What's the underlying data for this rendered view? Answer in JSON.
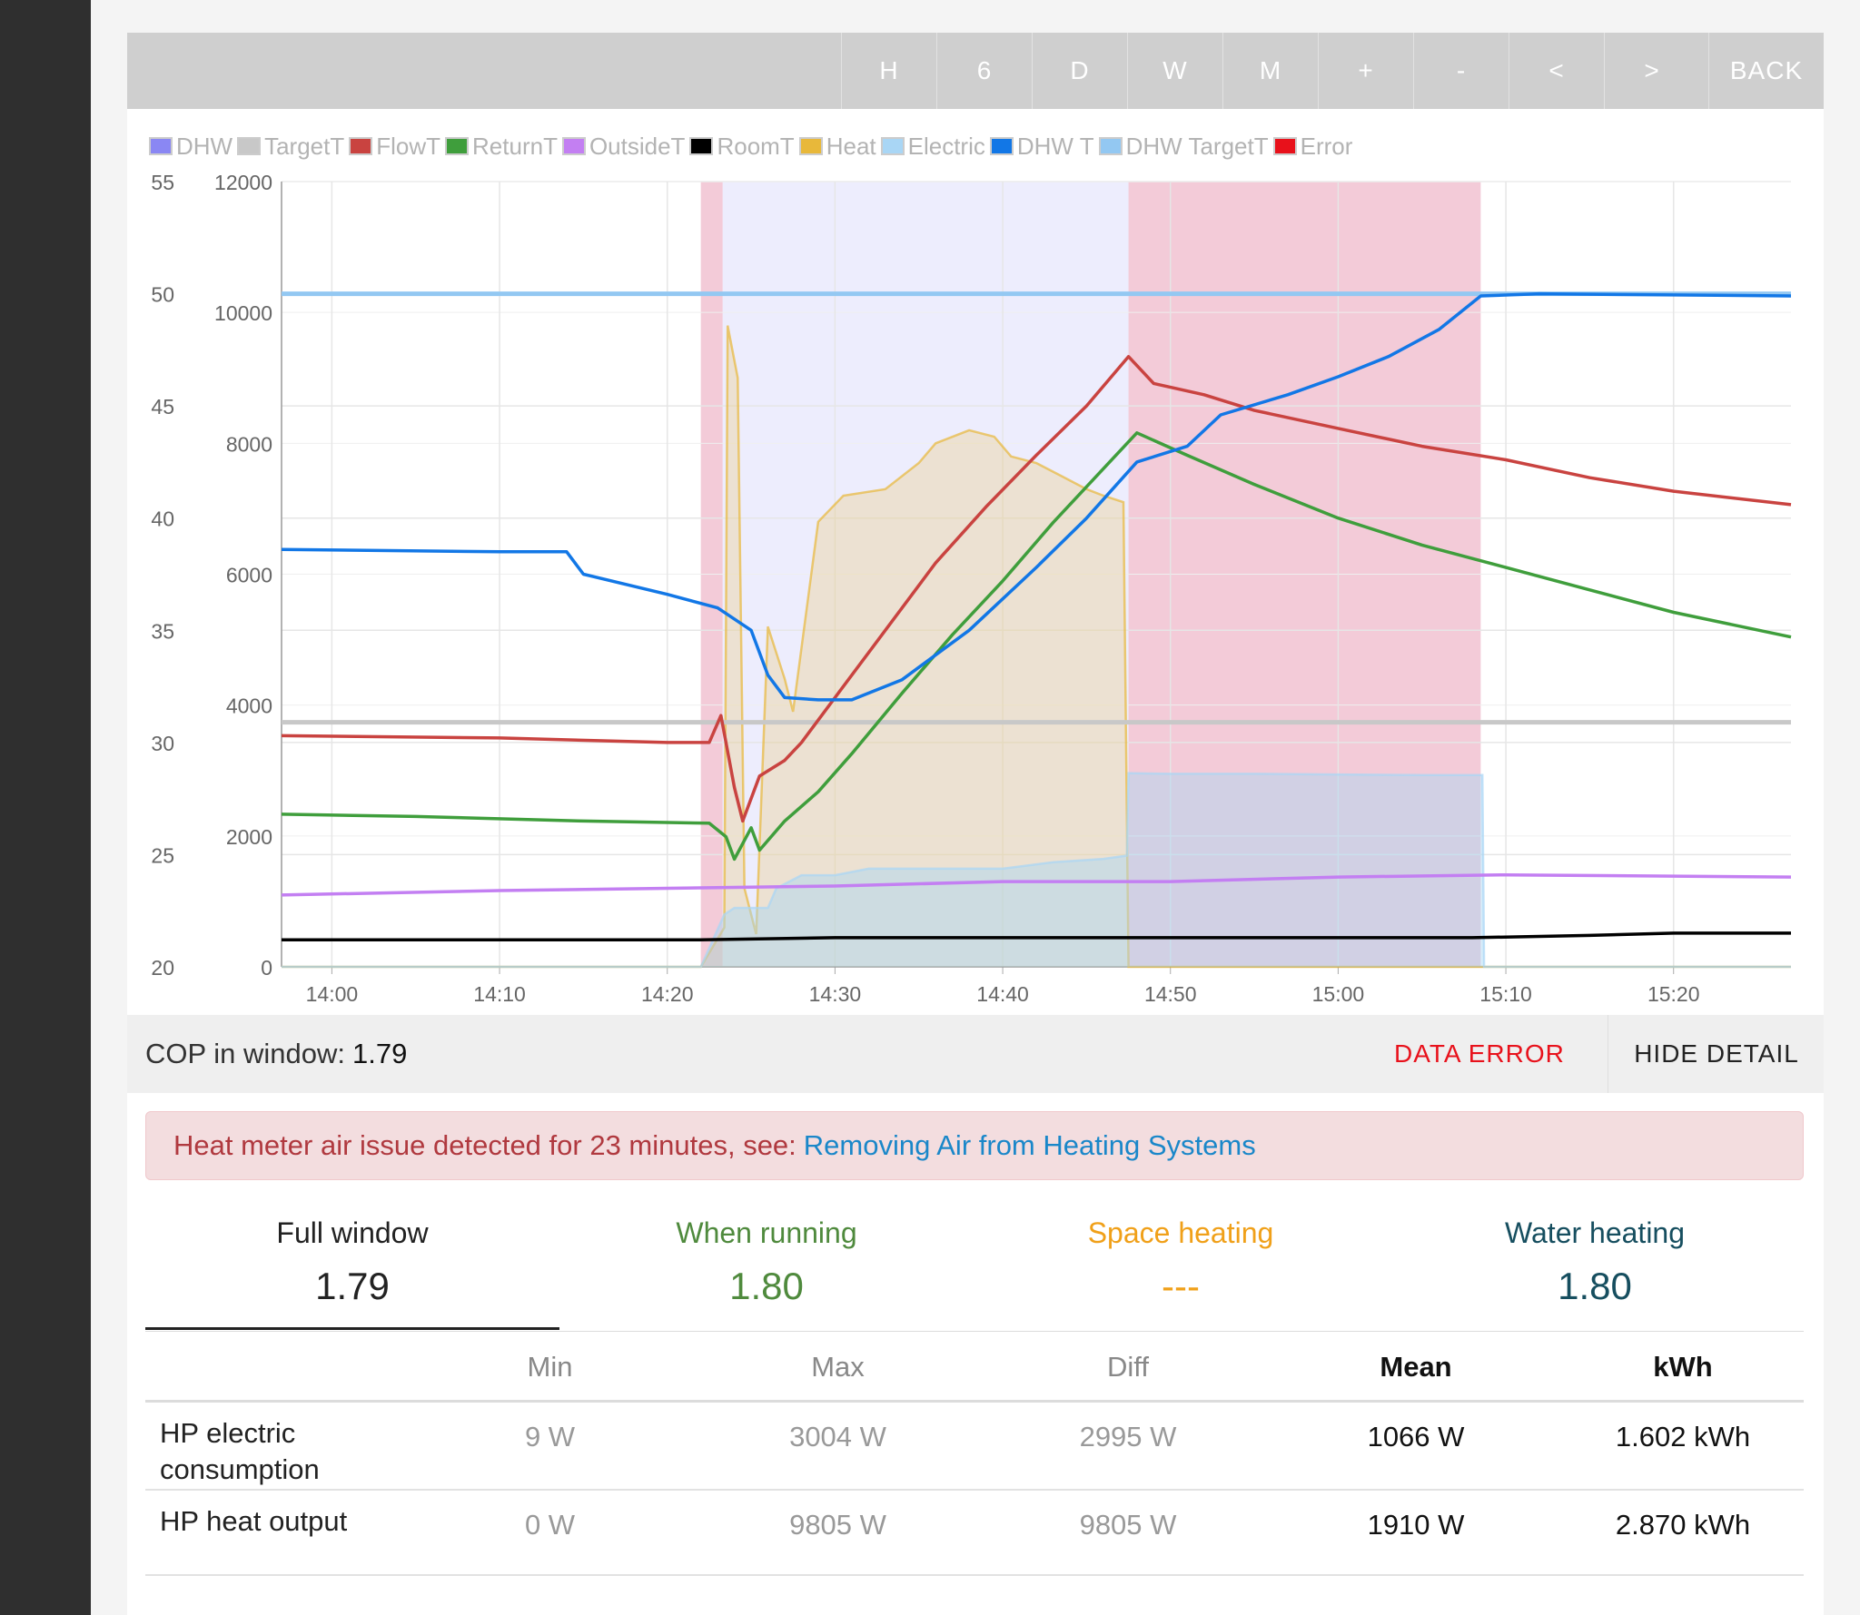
{
  "toolbar": {
    "buttons": [
      "H",
      "6",
      "D",
      "W",
      "M",
      "+",
      "-",
      "<",
      ">",
      "BACK"
    ]
  },
  "legend": [
    {
      "label": "DHW",
      "color": "#8a87f3"
    },
    {
      "label": "TargetT",
      "color": "#c8c8c8"
    },
    {
      "label": "FlowT",
      "color": "#c94340"
    },
    {
      "label": "ReturnT",
      "color": "#3f9e3c"
    },
    {
      "label": "OutsideT",
      "color": "#c37ff2"
    },
    {
      "label": "RoomT",
      "color": "#000000"
    },
    {
      "label": "Heat",
      "color": "#e8b83a"
    },
    {
      "label": "Electric",
      "color": "#a9d6f5"
    },
    {
      "label": "DHW T",
      "color": "#1277e6"
    },
    {
      "label": "DHW TargetT",
      "color": "#93c8f2"
    },
    {
      "label": "Error",
      "color": "#e8111b"
    }
  ],
  "chart_data": {
    "type": "line",
    "x_ticks": [
      "14:00",
      "14:10",
      "14:20",
      "14:30",
      "14:40",
      "14:50",
      "15:00",
      "15:10",
      "15:20"
    ],
    "x_range_minutes": [
      -3,
      87
    ],
    "y_left_ticks": [
      "55",
      "50",
      "45",
      "40",
      "35",
      "30",
      "25",
      "20"
    ],
    "y_left_range": [
      20,
      55
    ],
    "y_right_ticks": [
      "12000",
      "10000",
      "8000",
      "6000",
      "4000",
      "2000",
      "0"
    ],
    "y_right_range": [
      0,
      12000
    ],
    "grid": true,
    "legend_position": "top",
    "shaded_regions": [
      {
        "name": "Error",
        "start": 22.0,
        "end": 23.3
      },
      {
        "name": "DHW",
        "start": 23.3,
        "end": 47.5
      },
      {
        "name": "Error",
        "start": 47.5,
        "end": 68.5
      }
    ],
    "series": [
      {
        "name": "TargetT",
        "axis": "left",
        "color": "#c8c8c8",
        "points": [
          [
            -3,
            30.9
          ],
          [
            87,
            30.9
          ]
        ]
      },
      {
        "name": "DHW TargetT",
        "axis": "left",
        "color": "#93c8f2",
        "points": [
          [
            -3,
            50.0
          ],
          [
            87,
            50.0
          ]
        ]
      },
      {
        "name": "FlowT",
        "axis": "left",
        "color": "#c94340",
        "points": [
          [
            -3,
            30.3
          ],
          [
            10,
            30.2
          ],
          [
            20,
            30.0
          ],
          [
            22.5,
            30.0
          ],
          [
            23.2,
            31.2
          ],
          [
            24,
            28.0
          ],
          [
            24.5,
            26.5
          ],
          [
            25.5,
            28.5
          ],
          [
            27,
            29.2
          ],
          [
            28,
            30.0
          ],
          [
            30,
            32.0
          ],
          [
            33,
            35.0
          ],
          [
            36,
            38.0
          ],
          [
            39,
            40.5
          ],
          [
            42,
            42.8
          ],
          [
            45,
            45.0
          ],
          [
            47.5,
            47.2
          ],
          [
            49,
            46.0
          ],
          [
            52,
            45.5
          ],
          [
            55,
            44.8
          ],
          [
            60,
            44.0
          ],
          [
            65,
            43.2
          ],
          [
            70,
            42.6
          ],
          [
            75,
            41.8
          ],
          [
            80,
            41.2
          ],
          [
            87,
            40.6
          ]
        ]
      },
      {
        "name": "ReturnT",
        "axis": "left",
        "color": "#3f9e3c",
        "points": [
          [
            -3,
            26.8
          ],
          [
            5,
            26.7
          ],
          [
            15,
            26.5
          ],
          [
            22.5,
            26.4
          ],
          [
            23.5,
            25.8
          ],
          [
            24,
            24.8
          ],
          [
            25,
            26.2
          ],
          [
            25.5,
            25.2
          ],
          [
            27,
            26.5
          ],
          [
            29,
            27.8
          ],
          [
            31,
            29.5
          ],
          [
            34,
            32.2
          ],
          [
            37,
            34.8
          ],
          [
            40,
            37.2
          ],
          [
            43,
            39.8
          ],
          [
            46,
            42.2
          ],
          [
            48,
            43.8
          ],
          [
            51,
            42.8
          ],
          [
            55,
            41.5
          ],
          [
            60,
            40.0
          ],
          [
            65,
            38.8
          ],
          [
            70,
            37.8
          ],
          [
            75,
            36.8
          ],
          [
            80,
            35.8
          ],
          [
            87,
            34.7
          ]
        ]
      },
      {
        "name": "DHW T",
        "axis": "left",
        "color": "#1277e6",
        "points": [
          [
            -3,
            38.6
          ],
          [
            10,
            38.5
          ],
          [
            14,
            38.5
          ],
          [
            15,
            37.5
          ],
          [
            20,
            36.6
          ],
          [
            23,
            36.0
          ],
          [
            25,
            35.0
          ],
          [
            26,
            33.0
          ],
          [
            27,
            32.0
          ],
          [
            29,
            31.9
          ],
          [
            31,
            31.9
          ],
          [
            34,
            32.8
          ],
          [
            38,
            35.0
          ],
          [
            42,
            37.8
          ],
          [
            45,
            40.0
          ],
          [
            48,
            42.5
          ],
          [
            51,
            43.2
          ],
          [
            53,
            44.6
          ],
          [
            57,
            45.5
          ],
          [
            60,
            46.3
          ],
          [
            63,
            47.2
          ],
          [
            66,
            48.4
          ],
          [
            68.5,
            49.9
          ],
          [
            72,
            50.0
          ],
          [
            87,
            49.9
          ]
        ]
      },
      {
        "name": "OutsideT",
        "axis": "left",
        "color": "#c37ff2",
        "points": [
          [
            -3,
            23.2
          ],
          [
            10,
            23.4
          ],
          [
            20,
            23.5
          ],
          [
            30,
            23.6
          ],
          [
            40,
            23.8
          ],
          [
            50,
            23.8
          ],
          [
            60,
            24.0
          ],
          [
            70,
            24.1
          ],
          [
            87,
            24.0
          ]
        ]
      },
      {
        "name": "RoomT",
        "axis": "left",
        "color": "#000000",
        "points": [
          [
            -3,
            21.2
          ],
          [
            22,
            21.2
          ],
          [
            30,
            21.3
          ],
          [
            68,
            21.3
          ],
          [
            75,
            21.4
          ],
          [
            80,
            21.5
          ],
          [
            87,
            21.5
          ]
        ]
      },
      {
        "name": "Heat",
        "axis": "right",
        "color": "#e8b83a",
        "fill": true,
        "points": [
          [
            -3,
            0
          ],
          [
            22,
            0
          ],
          [
            23.4,
            600
          ],
          [
            23.6,
            9800
          ],
          [
            24.2,
            9000
          ],
          [
            24.6,
            1200
          ],
          [
            25.3,
            500
          ],
          [
            26,
            5200
          ],
          [
            27,
            4400
          ],
          [
            27.5,
            3900
          ],
          [
            29,
            6800
          ],
          [
            30.5,
            7200
          ],
          [
            33,
            7300
          ],
          [
            35,
            7700
          ],
          [
            36,
            8000
          ],
          [
            38,
            8200
          ],
          [
            39.5,
            8100
          ],
          [
            40.5,
            7800
          ],
          [
            42,
            7700
          ],
          [
            43.5,
            7500
          ],
          [
            45,
            7300
          ],
          [
            46,
            7200
          ],
          [
            47.2,
            7100
          ],
          [
            47.5,
            0
          ],
          [
            87,
            0
          ]
        ]
      },
      {
        "name": "Electric",
        "axis": "right",
        "color": "#a9d6f5",
        "fill": true,
        "points": [
          [
            -3,
            0
          ],
          [
            22,
            0
          ],
          [
            23.4,
            800
          ],
          [
            24,
            900
          ],
          [
            26,
            900
          ],
          [
            26.5,
            1200
          ],
          [
            28,
            1400
          ],
          [
            30,
            1400
          ],
          [
            32,
            1500
          ],
          [
            36,
            1500
          ],
          [
            40,
            1500
          ],
          [
            43,
            1600
          ],
          [
            46,
            1650
          ],
          [
            47.4,
            1700
          ],
          [
            47.5,
            2960
          ],
          [
            50,
            2950
          ],
          [
            55,
            2950
          ],
          [
            60,
            2940
          ],
          [
            65,
            2930
          ],
          [
            68.6,
            2930
          ],
          [
            68.7,
            0
          ],
          [
            87,
            0
          ]
        ]
      }
    ]
  },
  "cop_bar": {
    "label": "COP in window:",
    "value": "1.79",
    "data_error": "DATA ERROR",
    "hide_detail": "HIDE DETAIL"
  },
  "alert": {
    "text": "Heat meter air issue detected for 23 minutes, see:",
    "link": "Removing Air from Heating Systems"
  },
  "cop_tabs": [
    {
      "label": "Full window",
      "value": "1.79",
      "color": "#222222"
    },
    {
      "label": "When running",
      "value": "1.80",
      "color": "#4f8a3d"
    },
    {
      "label": "Space heating",
      "value": "---",
      "color": "#f0a019"
    },
    {
      "label": "Water heating",
      "value": "1.80",
      "color": "#164e5f"
    }
  ],
  "stats_table": {
    "headers": [
      "",
      "Min",
      "Max",
      "Diff",
      "Mean",
      "kWh"
    ],
    "rows": [
      {
        "label": "HP electric consumption",
        "values": [
          "9 W",
          "3004 W",
          "2995 W",
          "1066 W",
          "1.602 kWh"
        ]
      },
      {
        "label": "HP heat output",
        "values": [
          "0 W",
          "9805 W",
          "9805 W",
          "1910 W",
          "2.870 kWh"
        ]
      }
    ]
  }
}
